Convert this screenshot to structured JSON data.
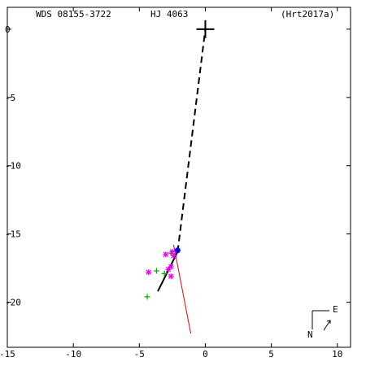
{
  "header": {
    "wds": "WDS 08155-3722",
    "name": "HJ 4063",
    "ref": "(Hrt2017a)"
  },
  "compass": {
    "north": "N",
    "east": "E"
  },
  "chart_data": {
    "type": "scatter",
    "xlim": [
      -15,
      11
    ],
    "ylim": [
      -23.3,
      1.6
    ],
    "x_ticks": [
      {
        "value": -15,
        "label": "-15"
      },
      {
        "value": -10,
        "label": "-10"
      },
      {
        "value": -5,
        "label": "-5"
      },
      {
        "value": 0,
        "label": "0"
      },
      {
        "value": 5,
        "label": "5"
      },
      {
        "value": 10,
        "label": "10"
      }
    ],
    "y_ticks": [
      {
        "value": 0,
        "label": "0"
      },
      {
        "value": -5,
        "label": "-5"
      },
      {
        "value": -10,
        "label": "-10"
      },
      {
        "value": -15,
        "label": "-15"
      },
      {
        "value": -20,
        "label": "-20"
      }
    ],
    "primary": {
      "x": 0,
      "y": 0
    },
    "orbit_arc": [
      [
        -3.6,
        -19.2
      ],
      [
        -2.1,
        -16.3
      ]
    ],
    "dashed_line": [
      [
        -2.1,
        -16.3
      ],
      [
        0,
        0
      ]
    ],
    "red_line": [
      [
        -2.4,
        -15.8
      ],
      [
        -1.1,
        -22.3
      ]
    ],
    "blue_point": {
      "x": -2.1,
      "y": -16.2
    },
    "green_plus": [
      [
        -3.7,
        -17.7
      ],
      [
        -3.1,
        -17.9
      ],
      [
        -4.4,
        -19.6
      ],
      [
        -2.6,
        -16.4
      ]
    ],
    "magenta_star": [
      [
        -4.3,
        -17.8
      ],
      [
        -3.0,
        -16.5
      ],
      [
        -2.5,
        -16.3
      ],
      [
        -2.6,
        -17.4
      ],
      [
        -2.8,
        -17.6
      ],
      [
        -2.6,
        -18.1
      ],
      [
        -2.4,
        -16.6
      ]
    ],
    "colors": {
      "axis": "#000000",
      "dashed": "#000000",
      "arc": "#000000",
      "red": "#ee0000",
      "blue": "#0000ee",
      "green": "#00aa00",
      "magenta": "#ee00ee"
    }
  }
}
